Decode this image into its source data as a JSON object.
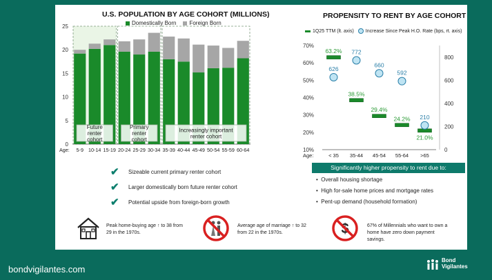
{
  "left_chart": {
    "title": "U.S. POPULATION BY AGE COHORT (MILLIONS)",
    "legend_domestic": "Domestically Born",
    "legend_foreign": "Foreign Born",
    "age_label": "Age:",
    "y_ticks": [
      "0",
      "5",
      "10",
      "15",
      "20",
      "25"
    ],
    "groups": {
      "future": "Future renter cohort",
      "primary": "Primary renter cohort",
      "important": "Increasingly important renter cohort"
    }
  },
  "right_chart": {
    "title": "PROPENSITY TO RENT BY AGE COHORT",
    "legend_ttm": "1Q25 TTM (lt. axis)",
    "legend_increase": "Increase Since Peak H.O. Rate (bps, rt. axis)",
    "age_label": "Age:",
    "left_ticks": [
      "10%",
      "20%",
      "30%",
      "40%",
      "50%",
      "60%",
      "70%"
    ],
    "right_ticks": [
      "0",
      "200",
      "400",
      "600",
      "800"
    ],
    "ttm_labels": [
      "63.2%",
      "38.5%",
      "29.4%",
      "24.2%",
      "21.0%"
    ],
    "bps_labels": [
      "626",
      "772",
      "660",
      "592",
      "210"
    ]
  },
  "chart_data": [
    {
      "type": "bar",
      "title": "U.S. POPULATION BY AGE COHORT (MILLIONS)",
      "categories": [
        "5-9",
        "10-14",
        "15-19",
        "20-24",
        "25-29",
        "30-34",
        "35-39",
        "40-44",
        "45-49",
        "50-54",
        "55-59",
        "60-64"
      ],
      "series": [
        {
          "name": "Domestically Born",
          "values": [
            19.2,
            20.2,
            21.0,
            19.6,
            19.0,
            19.6,
            18.0,
            17.5,
            15.2,
            16.1,
            16.2,
            18.2
          ]
        },
        {
          "name": "Foreign Born",
          "values": [
            0.8,
            1.1,
            1.2,
            2.2,
            3.2,
            4.0,
            4.8,
            4.9,
            5.9,
            4.8,
            4.2,
            3.7
          ]
        }
      ],
      "stacked": true,
      "ylim": [
        0,
        25
      ]
    },
    {
      "type": "line",
      "title": "PROPENSITY TO RENT BY AGE COHORT",
      "categories": [
        "< 35",
        "35-44",
        "45-54",
        "55-64",
        ">65"
      ],
      "series": [
        {
          "name": "1Q25 TTM (lt. axis)",
          "values": [
            63.2,
            38.5,
            29.4,
            24.2,
            21.0
          ],
          "unit": "%"
        },
        {
          "name": "Increase Since Peak H.O. Rate (bps, rt. axis)",
          "values": [
            626,
            772,
            660,
            592,
            210
          ],
          "unit": "bps"
        }
      ],
      "ylim_left": [
        10,
        70
      ],
      "ylim_right": [
        0,
        900
      ]
    }
  ],
  "checks": [
    "Sizeable current primary renter cohort",
    "Larger domestically born future renter cohort",
    "Potential upside from foreign-born growth"
  ],
  "banner": "Significantly higher propensity to rent due to:",
  "bullets": [
    "Overall housing shortage",
    "High for-sale home prices and mortgage rates",
    "Pent-up demand (household formation)"
  ],
  "facts": [
    "Peak home-buying age ↑ to 38 from 29 in the 1970s.",
    "Average age of marriage ↑ to 32 from 22 in the 1970s.",
    "67% of Millennials who want to own a home have zero down payment savings."
  ],
  "footer": {
    "url": "bondvigilantes.com",
    "brand_line1": "Bond",
    "brand_line2": "Vigilantes"
  },
  "colors": {
    "background": "#0a6b5c",
    "domestic": "#1a8a2a",
    "foreign": "#a6a6a6",
    "accent": "#0e7a6b",
    "bubble": "#bfe4f3"
  }
}
